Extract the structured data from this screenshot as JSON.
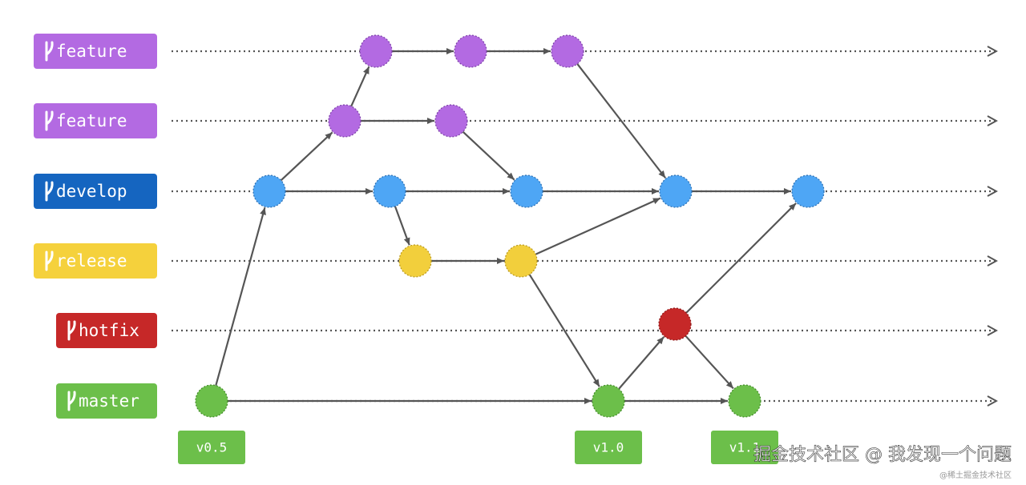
{
  "branches": [
    {
      "label": "feature"
    },
    {
      "label": "feature"
    },
    {
      "label": "develop"
    },
    {
      "label": "release"
    },
    {
      "label": "hotfix"
    },
    {
      "label": "master"
    }
  ],
  "tags": [
    {
      "label": "v0.5"
    },
    {
      "label": "v1.0"
    },
    {
      "label": "v1.1"
    }
  ],
  "watermark": {
    "main": "掘金技术社区 @ 我发现一个问题",
    "small": "@稀土掘金技术社区"
  }
}
